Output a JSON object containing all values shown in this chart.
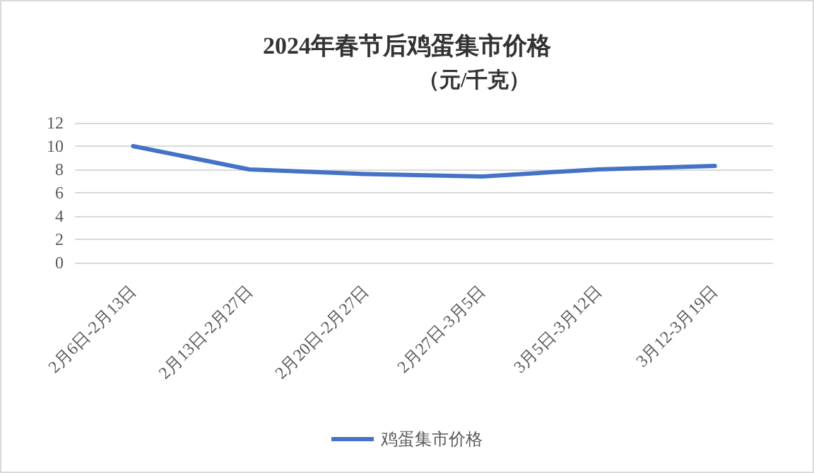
{
  "chart_data": {
    "type": "line",
    "title": "2024年春节后鸡蛋集市价格",
    "subtitle": "（元/千克）",
    "categories": [
      "2月6日-2月13日",
      "2月13日-2月27日",
      "2月20日-2月27日",
      "2月27日-3月5日",
      "3月5日-3月12日",
      "3月12-3月19日"
    ],
    "series": [
      {
        "name": "鸡蛋集市价格",
        "color": "#4472c4",
        "values": [
          10,
          8,
          7.6,
          7.4,
          8,
          8.3
        ]
      }
    ],
    "ylim": [
      0,
      12
    ],
    "yticks": [
      0,
      2,
      4,
      6,
      8,
      10,
      12
    ],
    "grid": "y",
    "legend": "bottom",
    "marker": "none",
    "line_style": "solid"
  }
}
